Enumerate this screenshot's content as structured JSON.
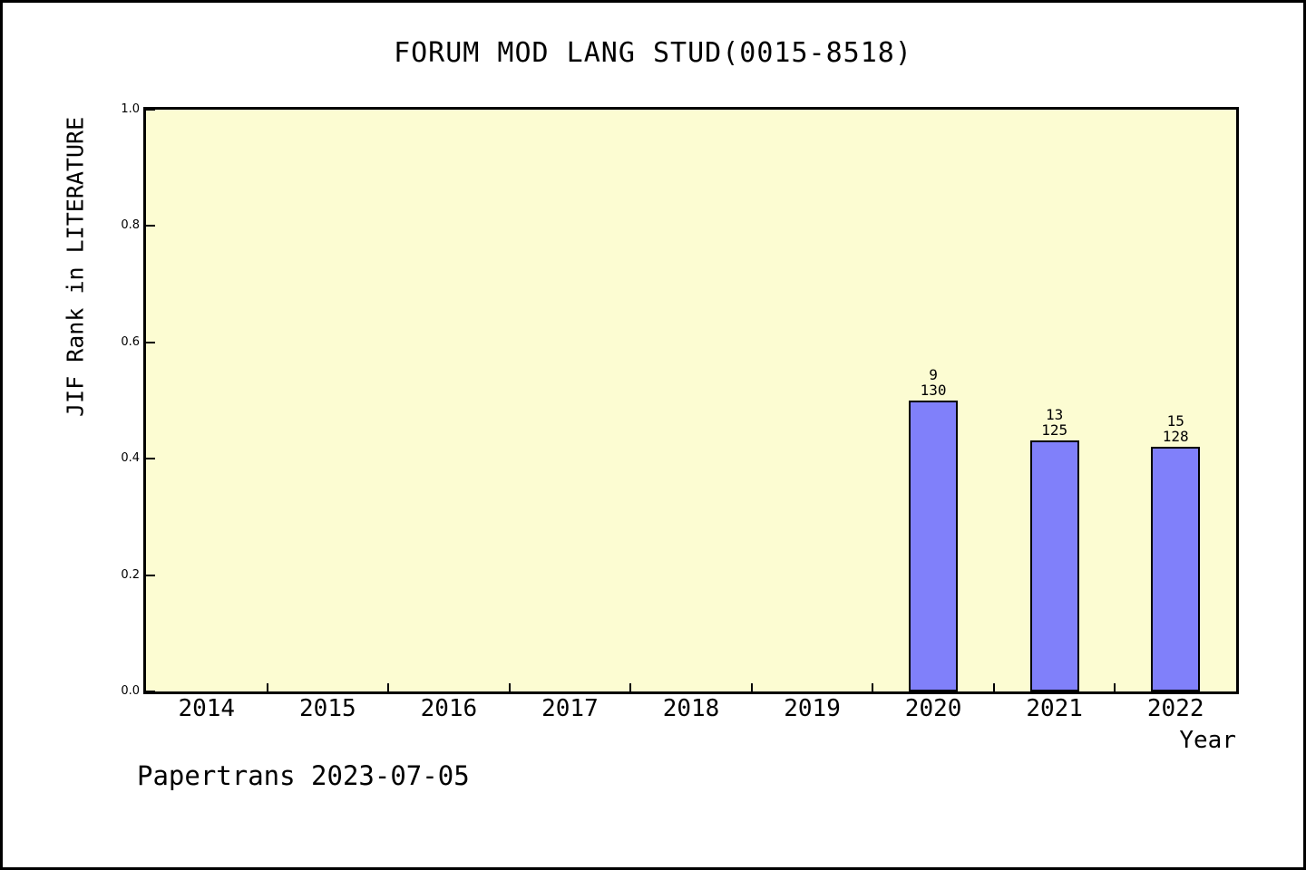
{
  "title": "FORUM MOD LANG STUD(0015-8518)",
  "footer": "Papertrans 2023-07-05",
  "colors": {
    "plot_bg": "#FCFCD2",
    "bar_fill": "#8080FA",
    "ink": "#000000"
  },
  "chart_data": {
    "type": "bar",
    "title": "FORUM MOD LANG STUD(0015-8518)",
    "xlabel": "Year",
    "ylabel": "JIF Rank in LITERATURE",
    "categories": [
      "2014",
      "2015",
      "2016",
      "2017",
      "2018",
      "2019",
      "2020",
      "2021",
      "2022"
    ],
    "values": [
      null,
      null,
      null,
      null,
      null,
      null,
      0.5,
      0.432,
      0.421
    ],
    "bar_labels": [
      null,
      null,
      null,
      null,
      null,
      null,
      [
        "9",
        "130"
      ],
      [
        "13",
        "125"
      ],
      [
        "15",
        "128"
      ]
    ],
    "ylim": [
      0.0,
      1.0
    ],
    "yticks": [
      "1.0",
      "0.8",
      "0.6",
      "0.4",
      "0.2",
      "0.0"
    ],
    "grid": false,
    "legend_position": null
  }
}
